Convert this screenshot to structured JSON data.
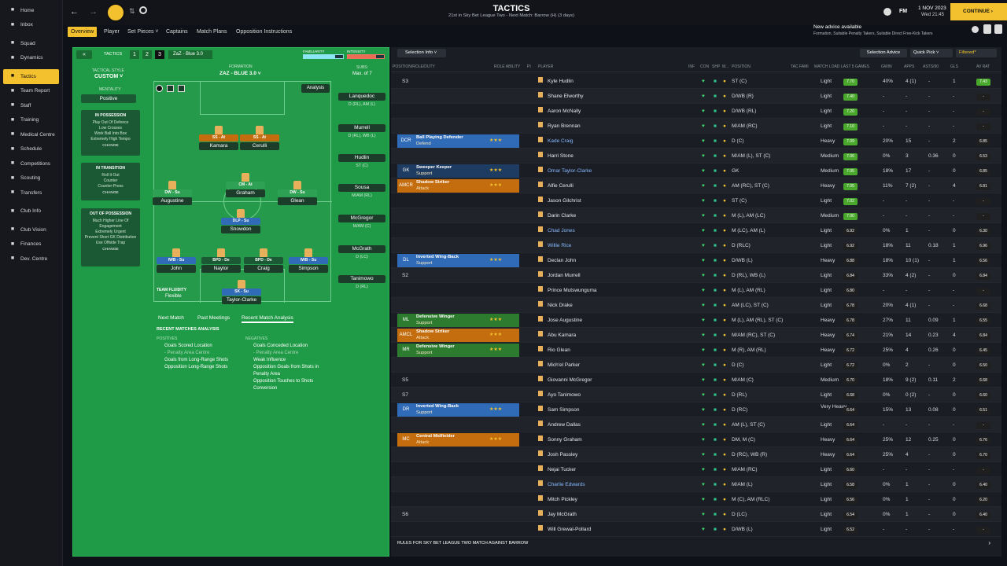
{
  "colors": {
    "accent": "#f3c12d",
    "green": "#1f9a46",
    "blue": "#2f6bb6",
    "orange": "#c46d0e",
    "dark": "#1a1d23"
  },
  "header": {
    "title": "TACTICS",
    "subtitle": "21st in Sky Bet League Two - Next Match: Barrow (H) (3 days)",
    "date": "1 NOV 2023",
    "time": "Wed 21:45",
    "continue": "CONTINUE",
    "advice_title": "New advice available",
    "advice_body": "Formation, Suitable Penalty Takers, Suitable Direct Free-Kick Takers"
  },
  "sidebar": {
    "items": [
      {
        "label": "Home",
        "icon": "home-icon"
      },
      {
        "label": "Inbox",
        "icon": "inbox-icon"
      },
      {
        "label": "Squad",
        "icon": "squad-icon"
      },
      {
        "label": "Dynamics",
        "icon": "dynamics-icon"
      },
      {
        "label": "Tactics",
        "icon": "tactics-icon"
      },
      {
        "label": "Team Report",
        "icon": "report-icon"
      },
      {
        "label": "Staff",
        "icon": "staff-icon"
      },
      {
        "label": "Training",
        "icon": "training-icon"
      },
      {
        "label": "Medical Centre",
        "icon": "medical-icon"
      },
      {
        "label": "Schedule",
        "icon": "schedule-icon"
      },
      {
        "label": "Competitions",
        "icon": "trophy-icon"
      },
      {
        "label": "Scouting",
        "icon": "scouting-icon"
      },
      {
        "label": "Transfers",
        "icon": "transfers-icon"
      },
      {
        "label": "Club Info",
        "icon": "club-info-icon"
      },
      {
        "label": "Club Vision",
        "icon": "vision-icon"
      },
      {
        "label": "Finances",
        "icon": "finances-icon"
      },
      {
        "label": "Dev. Centre",
        "icon": "dev-centre-icon"
      }
    ]
  },
  "subnav": {
    "items": [
      "Overview",
      "Player",
      "Set Pieces",
      "Captains",
      "Match Plans",
      "Opposition Instructions"
    ]
  },
  "tactics": {
    "label": "TACTICS",
    "slots": [
      "1",
      "2",
      "3"
    ],
    "tactic_name": "ZaZ - Blue 3.0",
    "familiarity": "FAMILIARITY",
    "intensity": "INTENSITY",
    "tactical_style_lbl": "TACTICAL STYLE",
    "tactical_style": "CUSTOM",
    "mentality_lbl": "MENTALITY",
    "mentality": "Positive",
    "formation_lbl": "FORMATION",
    "formation": "ZAZ - BLUE 3.0",
    "subs_lbl": "SUBS:",
    "subs_max": "Max. of 7",
    "analysis": "Analysis",
    "in_possession": "IN POSSESSION",
    "in_possession_items": "Play Out Of Defence\nLow Crosses\nWork Ball Into Box\nExtremely High Tempo",
    "in_transition": "IN TRANSITION",
    "in_transition_items": "Roll It Out\nCounter\nCounter-Press",
    "out_possession": "OUT OF POSSESSION",
    "out_possession_items": "Much Higher Line Of Engagement\nExtremely Urgent\nPrevent Short GK Distribution\nUse Offside Trap",
    "change": "CHANGE",
    "team_fluidity": "TEAM FLUIDITY",
    "fluidity": "Flexible"
  },
  "pitch_players": [
    {
      "role": "SS - At",
      "name": "Kamara"
    },
    {
      "role": "SS - At",
      "name": "Cerulli"
    },
    {
      "role": "CM - At",
      "name": "Graham"
    },
    {
      "role": "DW - Su",
      "name": "Augustine"
    },
    {
      "role": "DW - Su",
      "name": "Glean"
    },
    {
      "role": "DLP - Su",
      "name": "Snowdon"
    },
    {
      "role": "IWB - Su",
      "name": "John"
    },
    {
      "role": "BPD - De",
      "name": "Naylor"
    },
    {
      "role": "BPD - De",
      "name": "Craig"
    },
    {
      "role": "IWB - Su",
      "name": "Simpson"
    },
    {
      "role": "SK - Su",
      "name": "Taylor-Clarke"
    }
  ],
  "subs": [
    {
      "name": "Lanquedoc",
      "pos": "D (RL), AM (L)"
    },
    {
      "name": "Murrell",
      "pos": "D (RL), WB (L)"
    },
    {
      "name": "Hudlin",
      "pos": "ST (C)"
    },
    {
      "name": "Sousa",
      "pos": "M/AM (RL)"
    },
    {
      "name": "McGregor",
      "pos": "M/AM (C)"
    },
    {
      "name": "McGrath",
      "pos": "D (LC)"
    },
    {
      "name": "Tanimowo",
      "pos": "D (RL)"
    }
  ],
  "bottom_tabs": {
    "items": [
      "Next Match",
      "Past Meetings",
      "Recent Match Analysis"
    ],
    "analysis_title": "RECENT MATCHES ANALYSIS",
    "positives_lbl": "POSITIVES",
    "negatives_lbl": "NEGATIVES",
    "positives": [
      "Goals Scored Location",
      "- Penalty Area Centre",
      "Goals from Long-Range Shots",
      "Opposition Long-Range Shots"
    ],
    "negatives": [
      "Goals Conceded Location",
      "- Penalty Area Centre",
      "Weak Influence",
      "Opposition Goals from Shots in Penalty Area",
      "Opposition Touches to Shots Conversion"
    ]
  },
  "right_panel": {
    "selection_info": "Selection Info",
    "selection_advice": "Selection Advice",
    "quick_pick": "Quick Pick",
    "filtered": "Filtered*",
    "headers": [
      "POSITION/ROLE/DUTY",
      "ROLE ABILITY",
      "PI",
      "PLAYER",
      "INF",
      "CON",
      "SHP",
      "M...",
      "POSITION",
      "TAC FAMI",
      "MATCH LOAD",
      "LAST 5 GAMES",
      "GWIN",
      "APPS",
      "ASTS/90",
      "GLS",
      "AV RAT"
    ],
    "footer": "RULES FOR SKY BET LEAGUE TWO MATCH AGAINST BARROW"
  },
  "rows": [
    {
      "pos": "S3",
      "role": "",
      "duty": "",
      "name": "Kyle Hudlin",
      "position": "ST (C)",
      "load": "Light",
      "form": "7.70",
      "gwin": "40%",
      "apps": "4 (1)",
      "asts": "-",
      "gls": "1",
      "av": "7.43"
    },
    {
      "pos": "",
      "role": "",
      "duty": "",
      "name": "Shane Elworthy",
      "position": "D/WB (R)",
      "load": "Light",
      "form": "7.40",
      "gwin": "-",
      "apps": "-",
      "asts": "-",
      "gls": "-",
      "av": "-"
    },
    {
      "pos": "",
      "role": "",
      "duty": "",
      "name": "Aaron McNally",
      "position": "D/WB (RL)",
      "load": "Light",
      "form": "7.20",
      "gwin": "-",
      "apps": "-",
      "asts": "-",
      "gls": "-",
      "av": "-"
    },
    {
      "pos": "",
      "role": "",
      "duty": "",
      "name": "Ryan Brennan",
      "position": "M/AM (RC)",
      "load": "Light",
      "form": "7.10",
      "gwin": "-",
      "apps": "-",
      "asts": "-",
      "gls": "-",
      "av": "-"
    },
    {
      "pos": "DCR",
      "role": "Ball Playing Defender",
      "duty": "Defend",
      "name": "Kade Craig",
      "position": "D (C)",
      "load": "Heavy",
      "form": "7.09",
      "gwin": "20%",
      "apps": "15",
      "asts": "-",
      "gls": "2",
      "av": "6.85"
    },
    {
      "pos": "",
      "role": "",
      "duty": "",
      "name": "Harri Stone",
      "position": "M/AM (L), ST (C)",
      "load": "Medium",
      "form": "7.06",
      "gwin": "0%",
      "apps": "3",
      "asts": "0.36",
      "gls": "0",
      "av": "6.53"
    },
    {
      "pos": "GK",
      "role": "Sweeper Keeper",
      "duty": "Support",
      "name": "Omar Taylor-Clarke",
      "position": "GK",
      "load": "Medium",
      "form": "7.05",
      "gwin": "18%",
      "apps": "17",
      "asts": "-",
      "gls": "0",
      "av": "6.85"
    },
    {
      "pos": "AMCR",
      "role": "Shadow Striker",
      "duty": "Attack",
      "name": "Alfie Cerulli",
      "position": "AM (RC), ST (C)",
      "load": "Heavy",
      "form": "7.05",
      "gwin": "11%",
      "apps": "7 (2)",
      "asts": "-",
      "gls": "4",
      "av": "6.81"
    },
    {
      "pos": "",
      "role": "",
      "duty": "",
      "name": "Jason Gilchrist",
      "position": "ST (C)",
      "load": "Light",
      "form": "7.02",
      "gwin": "-",
      "apps": "-",
      "asts": "-",
      "gls": "-",
      "av": "-"
    },
    {
      "pos": "",
      "role": "",
      "duty": "",
      "name": "Darin Clarke",
      "position": "M (L), AM (LC)",
      "load": "Medium",
      "form": "7.00",
      "gwin": "-",
      "apps": "-",
      "asts": "-",
      "gls": "-",
      "av": "-"
    },
    {
      "pos": "",
      "role": "",
      "duty": "",
      "name": "Chad Jones",
      "position": "M (LC), AM (L)",
      "load": "Light",
      "form": "6.92",
      "gwin": "0%",
      "apps": "1",
      "asts": "-",
      "gls": "0",
      "av": "6.30"
    },
    {
      "pos": "",
      "role": "",
      "duty": "",
      "name": "Willie Rice",
      "position": "D (RLC)",
      "load": "Light",
      "form": "6.92",
      "gwin": "18%",
      "apps": "11",
      "asts": "0.18",
      "gls": "1",
      "av": "6.96"
    },
    {
      "pos": "DL",
      "role": "Inverted Wing-Back",
      "duty": "Support",
      "name": "Declan John",
      "position": "D/WB (L)",
      "load": "Heavy",
      "form": "6.88",
      "gwin": "18%",
      "apps": "10 (1)",
      "asts": "-",
      "gls": "1",
      "av": "6.56"
    },
    {
      "pos": "S2",
      "role": "",
      "duty": "",
      "name": "Jordan Murrell",
      "position": "D (RL), WB (L)",
      "load": "Light",
      "form": "6.84",
      "gwin": "33%",
      "apps": "4 (2)",
      "asts": "-",
      "gls": "0",
      "av": "6.84"
    },
    {
      "pos": "",
      "role": "",
      "duty": "",
      "name": "Prince Mutswunguma",
      "position": "M (L), AM (RL)",
      "load": "Light",
      "form": "6.80",
      "gwin": "-",
      "apps": "-",
      "asts": "-",
      "gls": "-",
      "av": "-"
    },
    {
      "pos": "",
      "role": "",
      "duty": "",
      "name": "Nick Drake",
      "position": "AM (LC), ST (C)",
      "load": "Light",
      "form": "6.78",
      "gwin": "20%",
      "apps": "4 (1)",
      "asts": "-",
      "gls": "-",
      "av": "6.68"
    },
    {
      "pos": "ML",
      "role": "Defensive Winger",
      "duty": "Support",
      "name": "Jose Augustine",
      "position": "M (L), AM (RL), ST (C)",
      "load": "Heavy",
      "form": "6.78",
      "gwin": "27%",
      "apps": "11",
      "asts": "0.09",
      "gls": "1",
      "av": "6.55"
    },
    {
      "pos": "AMCL",
      "role": "Shadow Striker",
      "duty": "Attack",
      "name": "Abu Kamara",
      "position": "M/AM (RC), ST (C)",
      "load": "Heavy",
      "form": "6.74",
      "gwin": "21%",
      "apps": "14",
      "asts": "0.23",
      "gls": "4",
      "av": "6.84"
    },
    {
      "pos": "MR",
      "role": "Defensive Winger",
      "duty": "Support",
      "name": "Rio Glean",
      "position": "M (R), AM (RL)",
      "load": "Heavy",
      "form": "6.72",
      "gwin": "25%",
      "apps": "4",
      "asts": "0.26",
      "gls": "0",
      "av": "6.45"
    },
    {
      "pos": "",
      "role": "",
      "duty": "",
      "name": "Mich'el Parker",
      "position": "D (C)",
      "load": "Light",
      "form": "6.72",
      "gwin": "0%",
      "apps": "2",
      "asts": "-",
      "gls": "0",
      "av": "6.50"
    },
    {
      "pos": "S5",
      "role": "",
      "duty": "",
      "name": "Giovanni McGregor",
      "position": "M/AM (C)",
      "load": "Medium",
      "form": "6.70",
      "gwin": "18%",
      "apps": "9 (2)",
      "asts": "0.11",
      "gls": "2",
      "av": "6.68"
    },
    {
      "pos": "S7",
      "role": "",
      "duty": "",
      "name": "Ayo Tanimowo",
      "position": "D (RL)",
      "load": "Light",
      "form": "6.68",
      "gwin": "0%",
      "apps": "0 (2)",
      "asts": "-",
      "gls": "0",
      "av": "6.60"
    },
    {
      "pos": "DR",
      "role": "Inverted Wing-Back",
      "duty": "Support",
      "name": "Sam Simpson",
      "position": "D (RC)",
      "load": "Very Heavy",
      "form": "6.64",
      "gwin": "15%",
      "apps": "13",
      "asts": "0.08",
      "gls": "0",
      "av": "6.51"
    },
    {
      "pos": "",
      "role": "",
      "duty": "",
      "name": "Andrew Dallas",
      "position": "AM (L), ST (C)",
      "load": "Light",
      "form": "6.64",
      "gwin": "-",
      "apps": "-",
      "asts": "-",
      "gls": "-",
      "av": "-"
    },
    {
      "pos": "MC",
      "role": "Central Midfielder",
      "duty": "Attack",
      "name": "Sonny Graham",
      "position": "DM, M (C)",
      "load": "Heavy",
      "form": "6.64",
      "gwin": "25%",
      "apps": "12",
      "asts": "0.25",
      "gls": "0",
      "av": "6.76"
    },
    {
      "pos": "",
      "role": "",
      "duty": "",
      "name": "Josh Passley",
      "position": "D (RC), WB (R)",
      "load": "Heavy",
      "form": "6.64",
      "gwin": "25%",
      "apps": "4",
      "asts": "-",
      "gls": "0",
      "av": "6.70"
    },
    {
      "pos": "",
      "role": "",
      "duty": "",
      "name": "Nejai Tucker",
      "position": "M/AM (RC)",
      "load": "Light",
      "form": "6.60",
      "gwin": "-",
      "apps": "-",
      "asts": "-",
      "gls": "-",
      "av": "-"
    },
    {
      "pos": "",
      "role": "",
      "duty": "",
      "name": "Charlie Edwards",
      "position": "M/AM (L)",
      "load": "Light",
      "form": "6.58",
      "gwin": "0%",
      "apps": "1",
      "asts": "-",
      "gls": "0",
      "av": "6.40"
    },
    {
      "pos": "",
      "role": "",
      "duty": "",
      "name": "Mitch Pickley",
      "position": "M (C), AM (RLC)",
      "load": "Light",
      "form": "6.56",
      "gwin": "0%",
      "apps": "1",
      "asts": "-",
      "gls": "0",
      "av": "6.20"
    },
    {
      "pos": "S6",
      "role": "",
      "duty": "",
      "name": "Jay McGrath",
      "position": "D (LC)",
      "load": "Light",
      "form": "6.54",
      "gwin": "0%",
      "apps": "1",
      "asts": "-",
      "gls": "0",
      "av": "6.40"
    },
    {
      "pos": "",
      "role": "",
      "duty": "",
      "name": "Will Grewal-Pollard",
      "position": "D/WB (L)",
      "load": "Light",
      "form": "6.52",
      "gwin": "-",
      "apps": "-",
      "asts": "-",
      "gls": "-",
      "av": "-"
    }
  ]
}
